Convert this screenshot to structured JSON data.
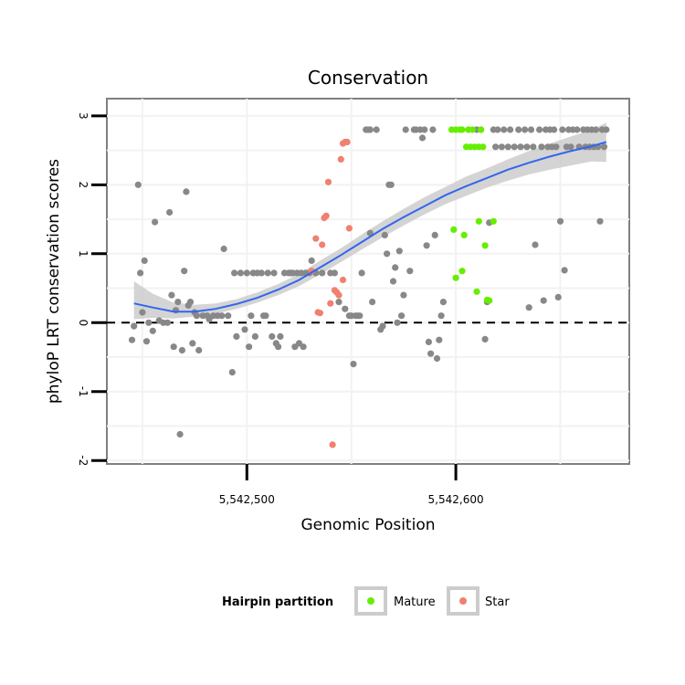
{
  "chart_data": {
    "type": "scatter",
    "title": "Conservation",
    "xlabel": "Genomic Position",
    "ylabel": "phyloP LRT conservation scores",
    "xlim": [
      5542433,
      5542683
    ],
    "ylim": [
      -2.05,
      3.25
    ],
    "x_ticks": [
      {
        "value": 5542500,
        "label": "5,542,500"
      },
      {
        "value": 5542600,
        "label": "5,542,600"
      }
    ],
    "y_ticks": [
      {
        "value": -2,
        "label": "-2"
      },
      {
        "value": -1,
        "label": "-1"
      },
      {
        "value": 0,
        "label": "0"
      },
      {
        "value": 1,
        "label": "1"
      },
      {
        "value": 2,
        "label": "2"
      },
      {
        "value": 3,
        "label": "3"
      }
    ],
    "reference_line": {
      "y": 0,
      "style": "dashed",
      "color": "#000000"
    },
    "grid": true,
    "legend": {
      "title": "Hairpin partition",
      "position": "bottom",
      "entries": [
        {
          "label": "Mature",
          "color": "#66ee00"
        },
        {
          "label": "Star",
          "color": "#f08070"
        }
      ]
    },
    "series": [
      {
        "color": "#888888",
        "points": [
          [
            5542445,
            -0.25
          ],
          [
            5542446,
            -0.05
          ],
          [
            5542448,
            2.0
          ],
          [
            5542449,
            0.72
          ],
          [
            5542450,
            0.15
          ],
          [
            5542451,
            0.9
          ],
          [
            5542452,
            -0.27
          ],
          [
            5542453,
            0.0
          ],
          [
            5542455,
            -0.12
          ],
          [
            5542456,
            1.46
          ],
          [
            5542458,
            0.03
          ],
          [
            5542460,
            0.0
          ],
          [
            5542462,
            0.0
          ],
          [
            5542463,
            1.6
          ],
          [
            5542464,
            0.4
          ],
          [
            5542465,
            -0.35
          ],
          [
            5542466,
            0.18
          ],
          [
            5542467,
            0.3
          ],
          [
            5542468,
            -1.62
          ],
          [
            5542469,
            -0.4
          ],
          [
            5542470,
            0.75
          ],
          [
            5542471,
            1.9
          ],
          [
            5542472,
            0.25
          ],
          [
            5542473,
            0.3
          ],
          [
            5542474,
            -0.3
          ],
          [
            5542475,
            0.15
          ],
          [
            5542476,
            0.1
          ],
          [
            5542477,
            -0.4
          ],
          [
            5542479,
            0.1
          ],
          [
            5542481,
            0.1
          ],
          [
            5542482,
            0.05
          ],
          [
            5542484,
            0.1
          ],
          [
            5542486,
            0.1
          ],
          [
            5542488,
            0.1
          ],
          [
            5542489,
            1.07
          ],
          [
            5542491,
            0.1
          ],
          [
            5542493,
            -0.72
          ],
          [
            5542494,
            0.72
          ],
          [
            5542495,
            -0.2
          ],
          [
            5542497,
            0.72
          ],
          [
            5542499,
            -0.1
          ],
          [
            5542500,
            0.72
          ],
          [
            5542501,
            -0.35
          ],
          [
            5542502,
            0.1
          ],
          [
            5542503,
            0.72
          ],
          [
            5542504,
            -0.2
          ],
          [
            5542505,
            0.72
          ],
          [
            5542507,
            0.72
          ],
          [
            5542508,
            0.1
          ],
          [
            5542509,
            0.1
          ],
          [
            5542510,
            0.72
          ],
          [
            5542512,
            -0.2
          ],
          [
            5542513,
            0.72
          ],
          [
            5542514,
            -0.3
          ],
          [
            5542515,
            -0.35
          ],
          [
            5542516,
            -0.2
          ],
          [
            5542518,
            0.72
          ],
          [
            5542520,
            0.72
          ],
          [
            5542521,
            0.72
          ],
          [
            5542522,
            0.72
          ],
          [
            5542523,
            -0.35
          ],
          [
            5542524,
            0.72
          ],
          [
            5542525,
            -0.3
          ],
          [
            5542526,
            0.72
          ],
          [
            5542527,
            -0.35
          ],
          [
            5542528,
            0.72
          ],
          [
            5542530,
            0.72
          ],
          [
            5542531,
            0.9
          ],
          [
            5542533,
            0.72
          ],
          [
            5542536,
            0.72
          ],
          [
            5542540,
            0.72
          ],
          [
            5542542,
            0.72
          ],
          [
            5542544,
            0.3
          ],
          [
            5542547,
            0.2
          ],
          [
            5542549,
            0.1
          ],
          [
            5542550,
            0.1
          ],
          [
            5542551,
            -0.6
          ],
          [
            5542552,
            0.1
          ],
          [
            5542553,
            0.1
          ],
          [
            5542554,
            0.1
          ],
          [
            5542555,
            0.72
          ],
          [
            5542557,
            2.8
          ],
          [
            5542558,
            2.8
          ],
          [
            5542559,
            1.3
          ],
          [
            5542559,
            2.8
          ],
          [
            5542560,
            0.3
          ],
          [
            5542562,
            2.8
          ],
          [
            5542564,
            -0.1
          ],
          [
            5542565,
            -0.05
          ],
          [
            5542566,
            1.27
          ],
          [
            5542567,
            1.0
          ],
          [
            5542568,
            2.0
          ],
          [
            5542569,
            2.0
          ],
          [
            5542570,
            0.6
          ],
          [
            5542571,
            0.8
          ],
          [
            5542572,
            0.0
          ],
          [
            5542573,
            1.04
          ],
          [
            5542574,
            0.1
          ],
          [
            5542575,
            0.4
          ],
          [
            5542576,
            2.8
          ],
          [
            5542578,
            0.75
          ],
          [
            5542580,
            2.8
          ],
          [
            5542581,
            2.8
          ],
          [
            5542583,
            2.8
          ],
          [
            5542584,
            2.68
          ],
          [
            5542585,
            2.8
          ],
          [
            5542586,
            1.12
          ],
          [
            5542587,
            -0.28
          ],
          [
            5542588,
            -0.45
          ],
          [
            5542589,
            2.8
          ],
          [
            5542590,
            1.27
          ],
          [
            5542591,
            -0.52
          ],
          [
            5542592,
            -0.25
          ],
          [
            5542593,
            0.1
          ],
          [
            5542594,
            0.3
          ],
          [
            5542606,
            2.8
          ],
          [
            5542610,
            2.8
          ],
          [
            5542612,
            2.8
          ],
          [
            5542614,
            -0.24
          ],
          [
            5542615,
            0.3
          ],
          [
            5542616,
            1.45
          ],
          [
            5542618,
            2.8
          ],
          [
            5542619,
            2.55
          ],
          [
            5542620,
            2.8
          ],
          [
            5542622,
            2.55
          ],
          [
            5542623,
            2.8
          ],
          [
            5542625,
            2.55
          ],
          [
            5542626,
            2.8
          ],
          [
            5542628,
            2.55
          ],
          [
            5542630,
            2.8
          ],
          [
            5542631,
            2.55
          ],
          [
            5542633,
            2.8
          ],
          [
            5542634,
            2.55
          ],
          [
            5542635,
            0.22
          ],
          [
            5542636,
            2.8
          ],
          [
            5542637,
            2.55
          ],
          [
            5542638,
            1.13
          ],
          [
            5542640,
            2.8
          ],
          [
            5542641,
            2.55
          ],
          [
            5542642,
            0.32
          ],
          [
            5542643,
            2.8
          ],
          [
            5542644,
            2.55
          ],
          [
            5542645,
            2.8
          ],
          [
            5542646,
            2.55
          ],
          [
            5542647,
            2.8
          ],
          [
            5542648,
            2.55
          ],
          [
            5542649,
            0.37
          ],
          [
            5542650,
            1.47
          ],
          [
            5542651,
            2.8
          ],
          [
            5542652,
            0.76
          ],
          [
            5542653,
            2.55
          ],
          [
            5542654,
            2.8
          ],
          [
            5542655,
            2.55
          ],
          [
            5542656,
            2.8
          ],
          [
            5542658,
            2.8
          ],
          [
            5542659,
            2.55
          ],
          [
            5542661,
            2.8
          ],
          [
            5542662,
            2.55
          ],
          [
            5542663,
            2.8
          ],
          [
            5542664,
            2.55
          ],
          [
            5542665,
            2.8
          ],
          [
            5542666,
            2.55
          ],
          [
            5542667,
            2.8
          ],
          [
            5542668,
            2.55
          ],
          [
            5542669,
            1.47
          ],
          [
            5542670,
            2.8
          ],
          [
            5542671,
            2.55
          ],
          [
            5542672,
            2.8
          ]
        ]
      },
      {
        "name": "Mature",
        "color": "#66ee00",
        "points": [
          [
            5542598,
            2.8
          ],
          [
            5542599,
            1.35
          ],
          [
            5542600,
            0.65
          ],
          [
            5542600,
            2.8
          ],
          [
            5542602,
            2.8
          ],
          [
            5542603,
            0.75
          ],
          [
            5542603,
            2.8
          ],
          [
            5542604,
            1.27
          ],
          [
            5542605,
            2.55
          ],
          [
            5542606,
            2.8
          ],
          [
            5542607,
            2.55
          ],
          [
            5542608,
            2.8
          ],
          [
            5542609,
            2.55
          ],
          [
            5542610,
            0.45
          ],
          [
            5542611,
            2.55
          ],
          [
            5542611,
            1.47
          ],
          [
            5542612,
            2.8
          ],
          [
            5542613,
            2.55
          ],
          [
            5542614,
            1.12
          ],
          [
            5542615,
            0.33
          ],
          [
            5542616,
            0.32
          ],
          [
            5542618,
            1.47
          ]
        ]
      },
      {
        "name": "Star",
        "color": "#f08070",
        "points": [
          [
            5542531,
            0.75
          ],
          [
            5542533,
            1.22
          ],
          [
            5542534,
            0.15
          ],
          [
            5542535,
            0.14
          ],
          [
            5542536,
            1.13
          ],
          [
            5542537,
            1.52
          ],
          [
            5542538,
            1.55
          ],
          [
            5542539,
            2.04
          ],
          [
            5542540,
            0.28
          ],
          [
            5542541,
            -1.77
          ],
          [
            5542542,
            0.47
          ],
          [
            5542543,
            0.44
          ],
          [
            5542544,
            0.4
          ],
          [
            5542545,
            2.37
          ],
          [
            5542546,
            2.6
          ],
          [
            5542546,
            0.62
          ],
          [
            5542547,
            2.62
          ],
          [
            5542548,
            2.62
          ],
          [
            5542549,
            1.37
          ]
        ]
      }
    ],
    "smooth": {
      "type": "loess",
      "color": "#3366ee",
      "ribbon_color": "#cccccc",
      "x": [
        5542446,
        5542455,
        5542465,
        5542475,
        5542485,
        5542495,
        5542505,
        5542515,
        5542525,
        5542535,
        5542545,
        5542555,
        5542565,
        5542575,
        5542585,
        5542595,
        5542605,
        5542615,
        5542625,
        5542635,
        5542645,
        5542655,
        5542665,
        5542672
      ],
      "y": [
        0.28,
        0.22,
        0.16,
        0.16,
        0.2,
        0.27,
        0.36,
        0.48,
        0.62,
        0.8,
        0.98,
        1.17,
        1.36,
        1.53,
        1.69,
        1.85,
        1.98,
        2.1,
        2.22,
        2.32,
        2.41,
        2.49,
        2.56,
        2.62
      ],
      "lower": [
        0.05,
        0.07,
        0.06,
        0.09,
        0.13,
        0.2,
        0.29,
        0.4,
        0.53,
        0.7,
        0.88,
        1.06,
        1.24,
        1.41,
        1.57,
        1.72,
        1.84,
        1.96,
        2.06,
        2.15,
        2.22,
        2.28,
        2.34,
        2.33
      ],
      "upper": [
        0.6,
        0.42,
        0.29,
        0.26,
        0.28,
        0.34,
        0.44,
        0.56,
        0.71,
        0.9,
        1.08,
        1.28,
        1.47,
        1.65,
        1.82,
        1.97,
        2.12,
        2.24,
        2.37,
        2.49,
        2.6,
        2.7,
        2.8,
        2.9
      ]
    }
  }
}
